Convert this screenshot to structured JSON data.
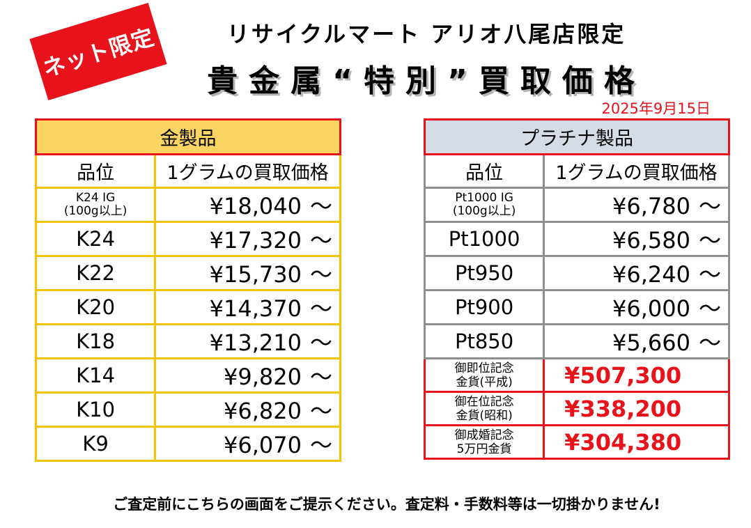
{
  "badge": "ネット限定",
  "store_name": "リサイクルマート アリオ八尾店限定",
  "headline": "貴金属“特別”買取価格",
  "date": "2025年9月15日",
  "gold": {
    "title": "金製品",
    "col_grade": "品位",
    "col_price": "1グラムの買取価格",
    "rows": [
      {
        "grade": "K24 IG",
        "note": "(100g以上)",
        "price": "¥18,040"
      },
      {
        "grade": "K24",
        "price": "¥17,320"
      },
      {
        "grade": "K22",
        "price": "¥15,730"
      },
      {
        "grade": "K20",
        "price": "¥14,370"
      },
      {
        "grade": "K18",
        "price": "¥13,210"
      },
      {
        "grade": "K14",
        "price": "¥9,820"
      },
      {
        "grade": "K10",
        "price": "¥6,820"
      },
      {
        "grade": "K9",
        "price": "¥6,070"
      }
    ]
  },
  "platinum": {
    "title": "プラチナ製品",
    "col_grade": "品位",
    "col_price": "1グラムの買取価格",
    "rows": [
      {
        "grade": "Pt1000 IG",
        "note": "(100g以上)",
        "price": "¥6,780"
      },
      {
        "grade": "Pt1000",
        "price": "¥6,580"
      },
      {
        "grade": "Pt950",
        "price": "¥6,240"
      },
      {
        "grade": "Pt900",
        "price": "¥6,000"
      },
      {
        "grade": "Pt850",
        "price": "¥5,660"
      }
    ],
    "coins": [
      {
        "line1": "御即位記念",
        "line2": "金貨(平成)",
        "price": "¥507,300"
      },
      {
        "line1": "御在位記念",
        "line2": "金貨(昭和)",
        "price": "¥338,200"
      },
      {
        "line1": "御成婚記念",
        "line2": "5万円金貨",
        "price": "¥304,380"
      }
    ]
  },
  "tilde": "～",
  "footer": "ご査定前にこちらの画面をご提示ください。査定料・手数料等は一切掛かりません!",
  "colors": {
    "red": "#e8121b",
    "gold_header": "#fbd563",
    "gold_border": "#f5c400",
    "platinum_header": "#d6dce5",
    "platinum_border": "#8f8f8f"
  }
}
